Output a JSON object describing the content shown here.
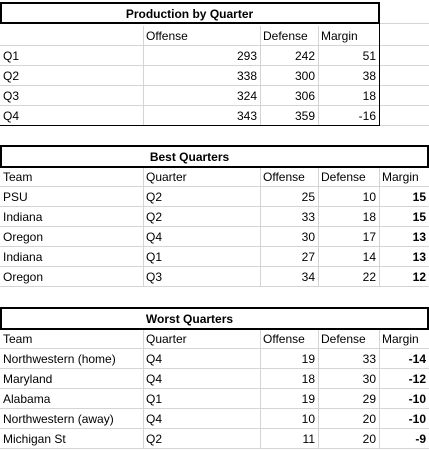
{
  "production": {
    "title": "Production by Quarter",
    "headers": [
      "",
      "Offense",
      "Defense",
      "Margin"
    ],
    "rows": [
      [
        "Q1",
        "293",
        "242",
        "51"
      ],
      [
        "Q2",
        "338",
        "300",
        "38"
      ],
      [
        "Q3",
        "324",
        "306",
        "18"
      ],
      [
        "Q4",
        "343",
        "359",
        "-16"
      ]
    ]
  },
  "best": {
    "title": "Best Quarters",
    "headers": [
      "Team",
      "Quarter",
      "Offense",
      "Defense",
      "Margin"
    ],
    "rows": [
      [
        "PSU",
        "Q2",
        "25",
        "10",
        "15"
      ],
      [
        "Indiana",
        "Q2",
        "33",
        "18",
        "15"
      ],
      [
        "Oregon",
        "Q4",
        "30",
        "17",
        "13"
      ],
      [
        "Indiana",
        "Q1",
        "27",
        "14",
        "13"
      ],
      [
        "Oregon",
        "Q3",
        "34",
        "22",
        "12"
      ]
    ]
  },
  "worst": {
    "title": "Worst Quarters",
    "headers": [
      "Team",
      "Quarter",
      "Offense",
      "Defense",
      "Margin"
    ],
    "rows": [
      [
        "Northwestern (home)",
        "Q4",
        "19",
        "33",
        "-14"
      ],
      [
        "Maryland",
        "Q4",
        "18",
        "30",
        "-12"
      ],
      [
        "Alabama",
        "Q1",
        "19",
        "29",
        "-10"
      ],
      [
        "Northwestern (away)",
        "Q4",
        "10",
        "20",
        "-10"
      ],
      [
        "Michigan St",
        "Q2",
        "11",
        "20",
        "-9"
      ]
    ]
  }
}
